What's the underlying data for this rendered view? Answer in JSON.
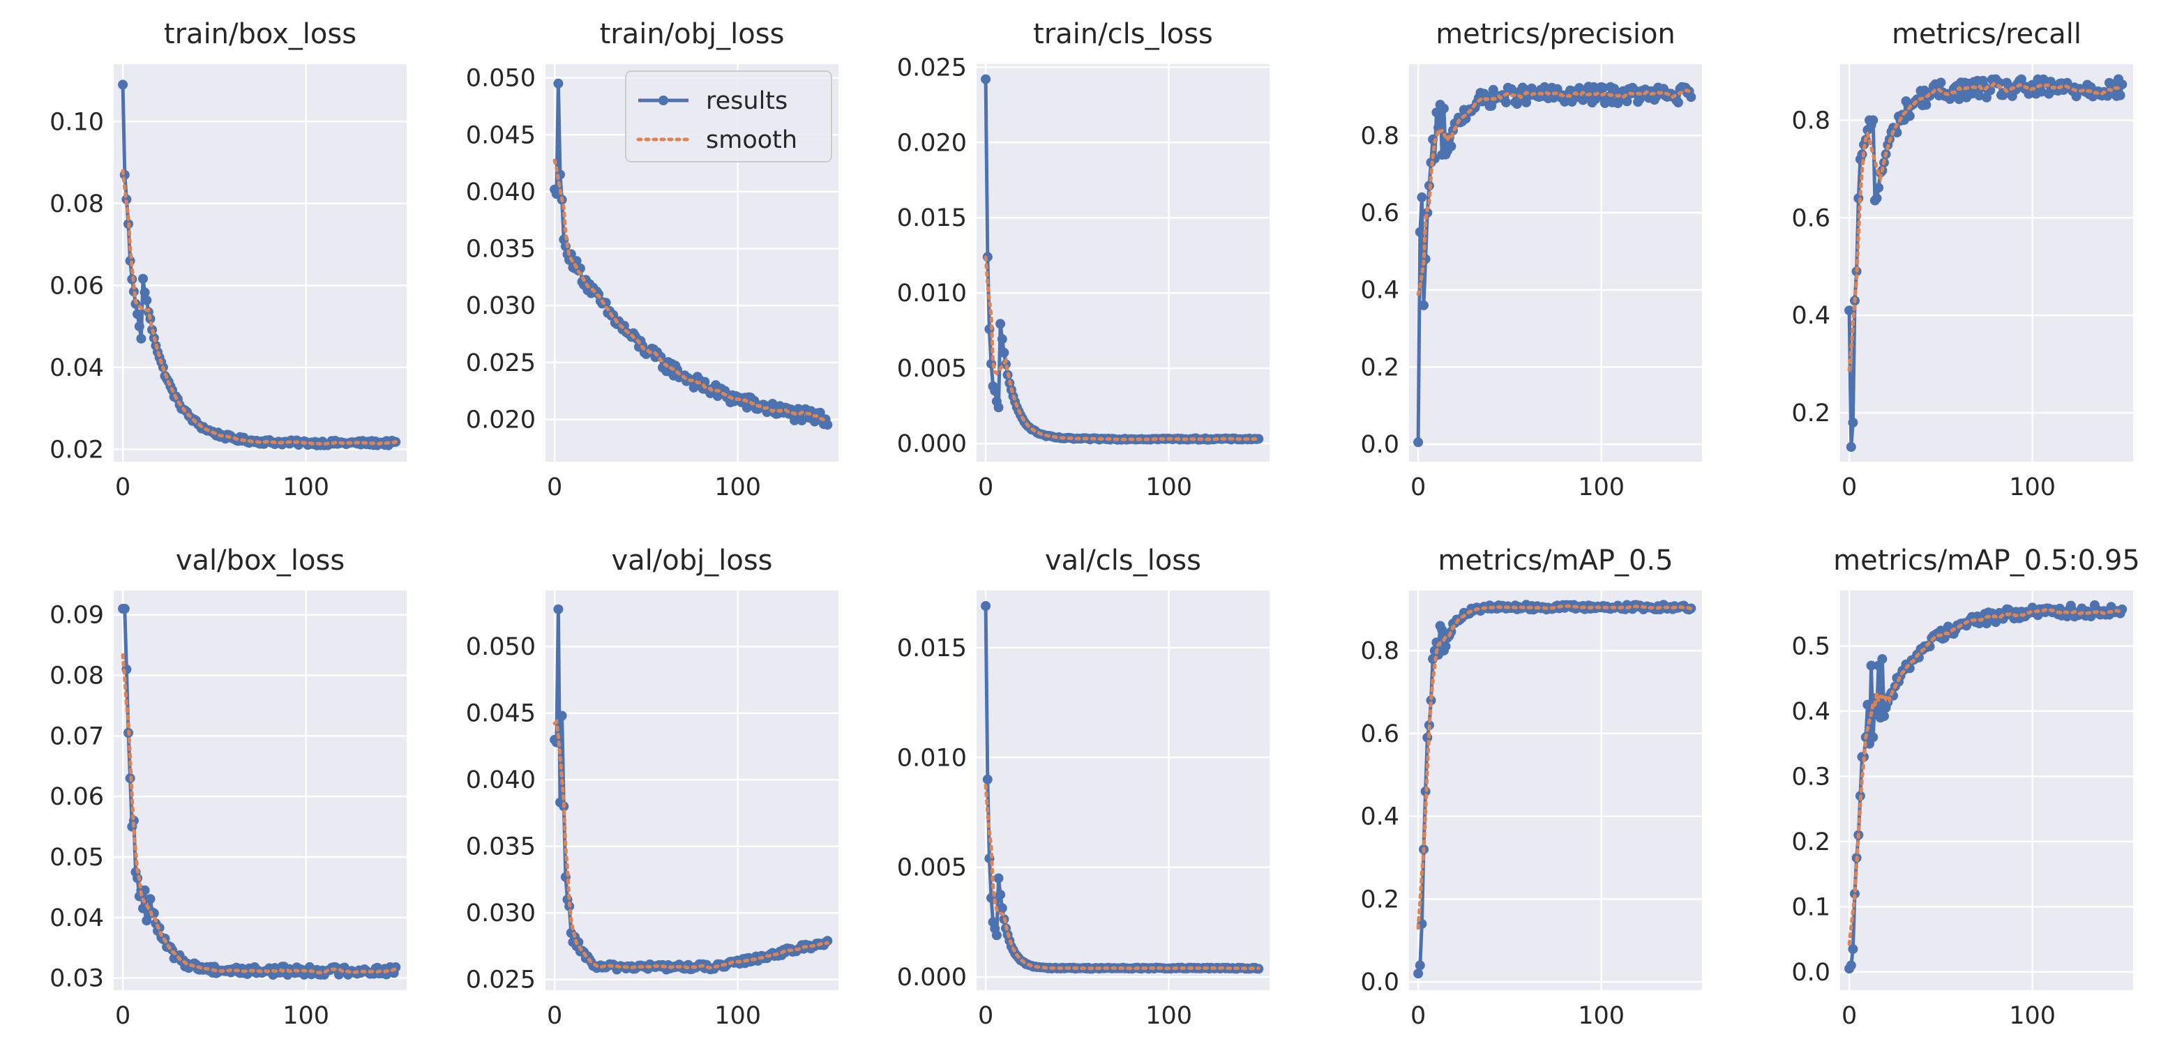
{
  "figure": {
    "background": "#ffffff",
    "panel_bg": "#eaeaf2",
    "grid_color": "#ffffff",
    "results_color": "#4c72b0",
    "smooth_color": "#dd8452",
    "text_color": "#262626"
  },
  "legend": {
    "results_label": "results",
    "smooth_label": "smooth"
  },
  "chart_data": [
    {
      "type": "line",
      "title": "train/box_loss",
      "xlim": [
        -5,
        155
      ],
      "ylim": [
        0.017,
        0.114
      ],
      "xticks": [
        0,
        100
      ],
      "yticks": [
        0.02,
        0.04,
        0.06,
        0.08,
        0.1
      ],
      "ytick_labels": [
        "0.02",
        "0.04",
        "0.06",
        "0.08",
        "0.10"
      ],
      "pattern": "decay",
      "start": 0.109,
      "end": 0.0215,
      "tau": 14,
      "noise": 0.0006,
      "fixed": [
        [
          0,
          0.109
        ],
        [
          1,
          0.087
        ],
        [
          2,
          0.081
        ],
        [
          3,
          0.075
        ],
        [
          4,
          0.066
        ],
        [
          5,
          0.0615
        ],
        [
          6,
          0.0585
        ],
        [
          7,
          0.0555
        ],
        [
          8,
          0.053
        ],
        [
          9,
          0.05
        ],
        [
          10,
          0.047
        ]
      ],
      "legend": false
    },
    {
      "type": "line",
      "title": "train/obj_loss",
      "xlim": [
        -5,
        155
      ],
      "ylim": [
        0.0163,
        0.0512
      ],
      "xticks": [
        0,
        100
      ],
      "yticks": [
        0.02,
        0.025,
        0.03,
        0.035,
        0.04,
        0.045,
        0.05
      ],
      "ytick_labels": [
        "0.020",
        "0.025",
        "0.030",
        "0.035",
        "0.040",
        "0.045",
        "0.050"
      ],
      "pattern": "decay2",
      "start": 0.0345,
      "end": 0.0188,
      "tau": 55,
      "noise": 0.0006,
      "fixed": [
        [
          0,
          0.0402
        ],
        [
          1,
          0.0398
        ],
        [
          2,
          0.0495
        ],
        [
          3,
          0.0415
        ],
        [
          4,
          0.0393
        ],
        [
          5,
          0.0358
        ],
        [
          6,
          0.0352
        ],
        [
          7,
          0.0345
        ],
        [
          8,
          0.034
        ]
      ],
      "legend": true
    },
    {
      "type": "line",
      "title": "train/cls_loss",
      "xlim": [
        -5,
        155
      ],
      "ylim": [
        -0.0012,
        0.0252
      ],
      "xticks": [
        0,
        100
      ],
      "yticks": [
        0.0,
        0.005,
        0.01,
        0.015,
        0.02,
        0.025
      ],
      "ytick_labels": [
        "0.000",
        "0.005",
        "0.010",
        "0.015",
        "0.020",
        "0.025"
      ],
      "pattern": "decay",
      "start": 0.0242,
      "end": 0.0003,
      "tau": 7,
      "noise": 5e-05,
      "fixed": [
        [
          0,
          0.0242
        ],
        [
          1,
          0.0124
        ],
        [
          2,
          0.0076
        ],
        [
          3,
          0.0053
        ],
        [
          4,
          0.0038
        ],
        [
          5,
          0.0035
        ],
        [
          6,
          0.0028
        ],
        [
          7,
          0.0024
        ]
      ],
      "legend": false
    },
    {
      "type": "line",
      "title": "metrics/precision",
      "xlim": [
        -5,
        155
      ],
      "ylim": [
        -0.045,
        0.985
      ],
      "xticks": [
        0,
        100
      ],
      "yticks": [
        0.0,
        0.2,
        0.4,
        0.6,
        0.8
      ],
      "ytick_labels": [
        "0.0",
        "0.2",
        "0.4",
        "0.6",
        "0.8"
      ],
      "pattern": "rise",
      "start": 0.5,
      "end": 0.905,
      "tau": 8,
      "noise": 0.022,
      "fixed": [
        [
          0,
          0.005
        ],
        [
          1,
          0.55
        ],
        [
          2,
          0.64
        ],
        [
          3,
          0.36
        ],
        [
          4,
          0.48
        ],
        [
          5,
          0.6
        ],
        [
          6,
          0.67
        ],
        [
          7,
          0.73
        ],
        [
          8,
          0.79
        ],
        [
          9,
          0.74
        ],
        [
          10,
          0.86
        ],
        [
          11,
          0.82
        ],
        [
          12,
          0.88
        ],
        [
          13,
          0.75
        ],
        [
          14,
          0.87
        ]
      ],
      "legend": false
    },
    {
      "type": "line",
      "title": "metrics/recall",
      "xlim": [
        -5,
        155
      ],
      "ylim": [
        0.1,
        0.915
      ],
      "xticks": [
        0,
        100
      ],
      "yticks": [
        0.2,
        0.4,
        0.6,
        0.8
      ],
      "ytick_labels": [
        "0.2",
        "0.4",
        "0.6",
        "0.8"
      ],
      "pattern": "rise",
      "start": 0.42,
      "end": 0.865,
      "tau": 10,
      "noise": 0.02,
      "fixed": [
        [
          0,
          0.41
        ],
        [
          1,
          0.13
        ],
        [
          2,
          0.18
        ],
        [
          3,
          0.43
        ],
        [
          4,
          0.49
        ],
        [
          5,
          0.64
        ],
        [
          6,
          0.72
        ],
        [
          7,
          0.73
        ],
        [
          8,
          0.75
        ],
        [
          9,
          0.76
        ],
        [
          10,
          0.78
        ],
        [
          11,
          0.8
        ],
        [
          12,
          0.79
        ],
        [
          13,
          0.8
        ]
      ],
      "legend": false
    },
    {
      "type": "line",
      "title": "val/box_loss",
      "xlim": [
        -5,
        155
      ],
      "ylim": [
        0.028,
        0.094
      ],
      "xticks": [
        0,
        100
      ],
      "yticks": [
        0.03,
        0.04,
        0.05,
        0.06,
        0.07,
        0.08,
        0.09
      ],
      "ytick_labels": [
        "0.03",
        "0.04",
        "0.05",
        "0.06",
        "0.07",
        "0.08",
        "0.09"
      ],
      "pattern": "decay",
      "start": 0.091,
      "end": 0.0312,
      "tau": 9,
      "noise": 0.0007,
      "fixed": [
        [
          0,
          0.091
        ],
        [
          1,
          0.091
        ],
        [
          2,
          0.081
        ],
        [
          3,
          0.0705
        ],
        [
          4,
          0.063
        ],
        [
          5,
          0.055
        ],
        [
          6,
          0.056
        ],
        [
          7,
          0.0475
        ],
        [
          8,
          0.0465
        ],
        [
          9,
          0.0435
        ],
        [
          10,
          0.0445
        ],
        [
          11,
          0.0415
        ],
        [
          12,
          0.0445
        ],
        [
          13,
          0.0395
        ],
        [
          14,
          0.0405
        ]
      ],
      "legend": false
    },
    {
      "type": "line",
      "title": "val/obj_loss",
      "xlim": [
        -5,
        155
      ],
      "ylim": [
        0.0242,
        0.0542
      ],
      "xticks": [
        0,
        100
      ],
      "yticks": [
        0.025,
        0.03,
        0.035,
        0.04,
        0.045,
        0.05
      ],
      "ytick_labels": [
        "0.025",
        "0.030",
        "0.035",
        "0.040",
        "0.045",
        "0.050"
      ],
      "pattern": "uvalley",
      "noise": 0.00022,
      "fixed": [
        [
          0,
          0.043
        ],
        [
          1,
          0.0428
        ],
        [
          2,
          0.0528
        ],
        [
          3,
          0.0383
        ],
        [
          4,
          0.0448
        ],
        [
          5,
          0.038
        ],
        [
          6,
          0.0327
        ],
        [
          7,
          0.031
        ],
        [
          8,
          0.0305
        ],
        [
          9,
          0.0285
        ],
        [
          10,
          0.0278
        ],
        [
          11,
          0.0282
        ],
        [
          12,
          0.0275
        ],
        [
          13,
          0.0278
        ],
        [
          14,
          0.0271
        ]
      ],
      "legend": false
    },
    {
      "type": "line",
      "title": "val/cls_loss",
      "xlim": [
        -5,
        155
      ],
      "ylim": [
        -0.0006,
        0.0176
      ],
      "xticks": [
        0,
        100
      ],
      "yticks": [
        0.0,
        0.005,
        0.01,
        0.015
      ],
      "ytick_labels": [
        "0.000",
        "0.005",
        "0.010",
        "0.015"
      ],
      "pattern": "decay",
      "start": 0.0169,
      "end": 0.0004,
      "tau": 5,
      "noise": 3e-05,
      "fixed": [
        [
          0,
          0.0169
        ],
        [
          1,
          0.009
        ],
        [
          2,
          0.0054
        ],
        [
          3,
          0.0036
        ],
        [
          4,
          0.0025
        ],
        [
          5,
          0.0022
        ],
        [
          6,
          0.0019
        ]
      ],
      "legend": false
    },
    {
      "type": "line",
      "title": "metrics/mAP_0.5",
      "xlim": [
        -5,
        155
      ],
      "ylim": [
        -0.02,
        0.945
      ],
      "xticks": [
        0,
        100
      ],
      "yticks": [
        0.0,
        0.2,
        0.4,
        0.6,
        0.8
      ],
      "ytick_labels": [
        "0.0",
        "0.2",
        "0.4",
        "0.6",
        "0.8"
      ],
      "pattern": "rise",
      "start": 0.62,
      "end": 0.905,
      "tau": 6,
      "noise": 0.006,
      "fixed": [
        [
          0,
          0.02
        ],
        [
          1,
          0.04
        ],
        [
          2,
          0.14
        ],
        [
          3,
          0.32
        ],
        [
          4,
          0.46
        ],
        [
          5,
          0.59
        ],
        [
          6,
          0.62
        ],
        [
          7,
          0.68
        ],
        [
          8,
          0.78
        ],
        [
          9,
          0.8
        ],
        [
          10,
          0.82
        ],
        [
          11,
          0.79
        ],
        [
          12,
          0.86
        ],
        [
          13,
          0.85
        ],
        [
          14,
          0.8
        ]
      ],
      "legend": false
    },
    {
      "type": "line",
      "title": "metrics/mAP_0.5:0.95",
      "xlim": [
        -5,
        155
      ],
      "ylim": [
        -0.028,
        0.585
      ],
      "xticks": [
        0,
        100
      ],
      "yticks": [
        0.0,
        0.1,
        0.2,
        0.3,
        0.4,
        0.5
      ],
      "ytick_labels": [
        "0.0",
        "0.1",
        "0.2",
        "0.3",
        "0.4",
        "0.5"
      ],
      "pattern": "rise",
      "start": 0.3,
      "end": 0.555,
      "tau": 22,
      "noise": 0.009,
      "fixed": [
        [
          0,
          0.005
        ],
        [
          1,
          0.01
        ],
        [
          2,
          0.035
        ],
        [
          3,
          0.12
        ],
        [
          4,
          0.175
        ],
        [
          5,
          0.21
        ],
        [
          6,
          0.27
        ],
        [
          7,
          0.33
        ],
        [
          8,
          0.33
        ],
        [
          9,
          0.36
        ],
        [
          10,
          0.41
        ],
        [
          11,
          0.35
        ],
        [
          12,
          0.47
        ],
        [
          13,
          0.36
        ],
        [
          14,
          0.42
        ],
        [
          15,
          0.4
        ],
        [
          16,
          0.47
        ],
        [
          17,
          0.39
        ],
        [
          18,
          0.48
        ]
      ],
      "legend": false
    }
  ]
}
